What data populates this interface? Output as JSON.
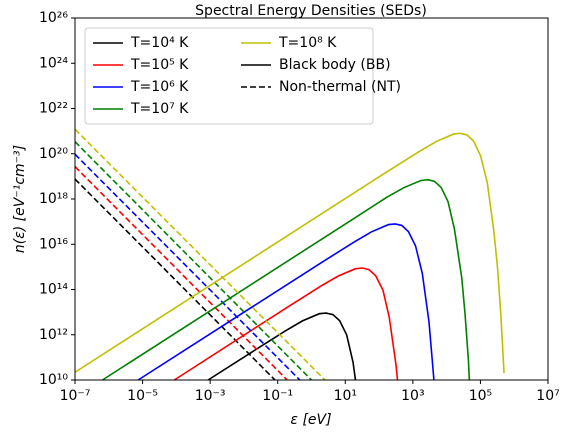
{
  "chart_data": {
    "type": "line",
    "title": "Spectral Energy Densities (SEDs)",
    "xlabel": "ε [eV]",
    "ylabel": "n(ε) [eV⁻¹cm⁻³]",
    "xscale": "log",
    "yscale": "log",
    "xlim": [
      1e-07,
      10000000.0
    ],
    "ylim": [
      10000000000.0,
      1e+26
    ],
    "xticks": [
      {
        "value": 1e-07,
        "label": "10⁻⁷"
      },
      {
        "value": 1e-05,
        "label": "10⁻⁵"
      },
      {
        "value": 0.001,
        "label": "10⁻³"
      },
      {
        "value": 0.1,
        "label": "10⁻¹"
      },
      {
        "value": 10,
        "label": "10¹"
      },
      {
        "value": 1000,
        "label": "10³"
      },
      {
        "value": 100000,
        "label": "10⁵"
      },
      {
        "value": 10000000,
        "label": "10⁷"
      }
    ],
    "yticks": [
      {
        "value": 10000000000.0,
        "label": "10¹⁰"
      },
      {
        "value": 1000000000000.0,
        "label": "10¹²"
      },
      {
        "value": 100000000000000.0,
        "label": "10¹⁴"
      },
      {
        "value": 1e+16,
        "label": "10¹⁶"
      },
      {
        "value": 1e+18,
        "label": "10¹⁸"
      },
      {
        "value": 1e+20,
        "label": "10²⁰"
      },
      {
        "value": 1e+22,
        "label": "10²²"
      },
      {
        "value": 1e+24,
        "label": "10²⁴"
      },
      {
        "value": 1e+26,
        "label": "10²⁶"
      }
    ],
    "grid": false,
    "legend": "upper left",
    "line_styles": [
      {
        "name": "Black body (BB)",
        "dashed": false
      },
      {
        "name": "Non-thermal (NT)",
        "dashed": true
      }
    ],
    "series": [
      {
        "name": "T=10⁴ K",
        "color": "#000000",
        "x": [
          0.00087,
          0.017,
          0.17,
          0.54,
          1.7,
          2.7,
          4.3,
          6.8,
          11,
          17,
          20
        ],
        "values": [
          10000000000.0,
          170000000000.0,
          1500000000000.0,
          4100000000000.0,
          8500000000000.0,
          9100000000000.0,
          7800000000000.0,
          4200000000000.0,
          980000000000.0,
          60000000000.0,
          10000000000.0
        ],
        "nt_x": [
          1e-07,
          0.083
        ],
        "nt_values": [
          7.6e+18,
          10000000000.0
        ]
      },
      {
        "name": "T=10⁵ K",
        "color": "#ff0000",
        "x": [
          8.7e-05,
          0.2,
          2.0,
          6.3,
          20,
          32,
          50,
          79,
          130,
          200,
          320,
          350
        ],
        "values": [
          10000000000.0,
          17000000000000.0,
          150000000000000.0,
          400000000000000.0,
          830000000000000.0,
          890000000000000.0,
          760000000000000.0,
          410000000000000.0,
          95000000000000.0,
          5900000000000.0,
          42000000000.0,
          10000000000.0
        ],
        "nt_x": [
          1e-07,
          0.19
        ],
        "nt_values": [
          2.7e+19,
          10000000000.0
        ]
      },
      {
        "name": "T=10⁶ K",
        "color": "#0000ff",
        "x": [
          7.4e-06,
          1.9,
          19,
          59,
          190,
          300,
          470,
          740,
          1200,
          1900,
          3000,
          3700,
          4200
        ],
        "values": [
          10000000000.0,
          1500000000000000.0,
          1.3e+16,
          3.5e+16,
          7.4e+16,
          7.9e+16,
          6.8e+16,
          3.6e+16,
          8500000000000000.0,
          520000000000000.0,
          3700000000000.0,
          96000000000.0,
          10000000000.0
        ],
        "nt_x": [
          1e-07,
          0.45
        ],
        "nt_values": [
          9.5e+19,
          10000000000.0
        ]
      },
      {
        "name": "T=10⁷ K",
        "color": "#008000",
        "x": [
          6.5e-07,
          17,
          170,
          550,
          1700,
          2800,
          4400,
          6900,
          11000,
          17000,
          28000,
          35000,
          44000,
          47000
        ],
        "values": [
          10000000000.0,
          1.3e+17,
          1.2e+18,
          3.2e+18,
          6.5e+18,
          7.1e+18,
          6e+18,
          3.2e+18,
          7.6e+17,
          4.7e+16,
          330000000000000.0,
          8500000000000.0,
          77000000000.0,
          10000000000.0
        ],
        "nt_x": [
          1e-07,
          1.0
        ],
        "nt_values": [
          3.4e+20,
          10000000000.0
        ]
      },
      {
        "name": "T=10⁸ K",
        "color": "#bfbf00",
        "x": [
          1e-07,
          160,
          1600,
          5000,
          16000,
          25000,
          40000,
          63000,
          100000,
          160000,
          250000,
          320000,
          400000,
          500000
        ],
        "values": [
          22000000000.0,
          1.5e+19,
          1.3e+20,
          3.5e+20,
          7.4e+20,
          8e+20,
          6.8e+20,
          3.6e+20,
          8.5e+19,
          5.2e+18,
          3.7e+16,
          960000000000000.0,
          8600000000000.0,
          20000000000.0
        ],
        "nt_x": [
          1e-07,
          2.5
        ],
        "nt_values": [
          1.2e+21,
          10000000000.0
        ]
      }
    ]
  }
}
